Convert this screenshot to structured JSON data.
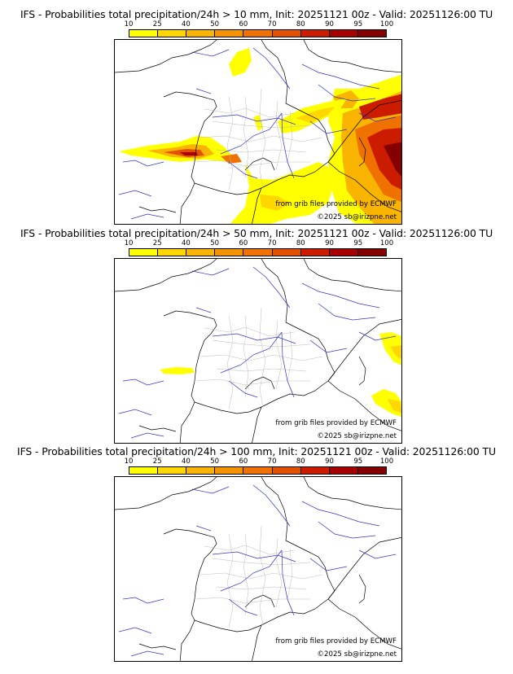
{
  "colorbar": {
    "labels": [
      "10",
      "25",
      "40",
      "50",
      "60",
      "70",
      "80",
      "90",
      "95",
      "100"
    ],
    "colors": [
      "#ffff00",
      "#ffd700",
      "#f9b400",
      "#f49300",
      "#ef7200",
      "#e25000",
      "#cc1c00",
      "#a70000",
      "#840000",
      "#4a0000"
    ]
  },
  "credit_source": "from grib files provided by ECMWF",
  "credit_copyright": "©2025 sb@irizpne.net",
  "panels": [
    {
      "title": "IFS - Probabilities total precipitation/24h > 10 mm, Init: 20251121 00z - Valid: 20251126:00 TU"
    },
    {
      "title": "IFS - Probabilities total precipitation/24h > 50 mm, Init: 20251121 00z - Valid: 20251126:00 TU"
    },
    {
      "title": "IFS - Probabilities total precipitation/24h > 100 mm, Init: 20251121 00z - Valid: 20251126:00 TU"
    }
  ]
}
